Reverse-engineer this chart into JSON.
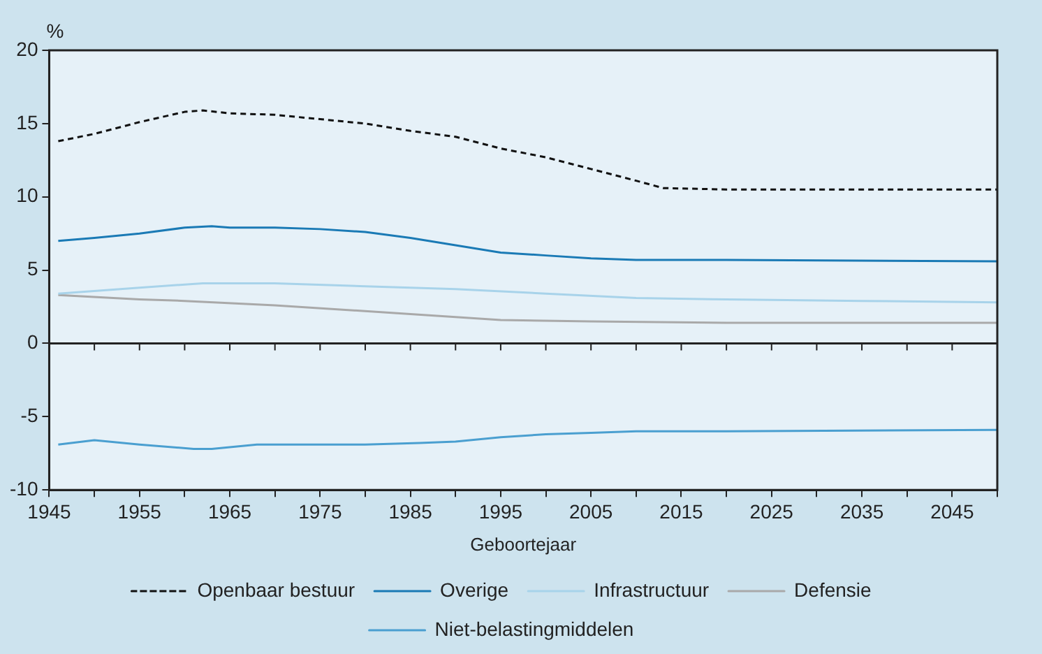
{
  "chart_data": {
    "type": "line",
    "ylabel": "%",
    "xlabel": "Geboortejaar",
    "xlim": [
      1945,
      2050
    ],
    "xticks": [
      1945,
      {
        "value": 1950,
        "label": null
      },
      1955,
      {
        "value": 1960,
        "label": null
      },
      1965,
      {
        "value": 1970,
        "label": null
      },
      1975,
      {
        "value": 1980,
        "label": null
      },
      1985,
      {
        "value": 1990,
        "label": null
      },
      1995,
      {
        "value": 2000,
        "label": null
      },
      2005,
      {
        "value": 2010,
        "label": null
      },
      2015,
      {
        "value": 2020,
        "label": null
      },
      2025,
      {
        "value": 2030,
        "label": null
      },
      2035,
      {
        "value": 2040,
        "label": null
      },
      2045,
      {
        "value": 2050,
        "label": null
      }
    ],
    "ylim": [
      -10,
      20
    ],
    "yticks": [
      -10,
      -5,
      0,
      5,
      10,
      15,
      20
    ],
    "grid": false,
    "legend": "bottom",
    "marker": "none",
    "ref_lines": [
      {
        "axis": "y",
        "value": 0,
        "color": "#222222"
      }
    ],
    "series": [
      {
        "name": "Openbaar bestuur",
        "color": "#111111",
        "line_style": "dashed",
        "x": [
          1946,
          1950,
          1955,
          1960,
          1962,
          1965,
          1970,
          1975,
          1980,
          1985,
          1990,
          1995,
          2000,
          2005,
          2010,
          2013,
          2020,
          2030,
          2040,
          2050
        ],
        "values": [
          13.8,
          14.3,
          15.1,
          15.8,
          15.9,
          15.7,
          15.6,
          15.3,
          15.0,
          14.5,
          14.1,
          13.3,
          12.7,
          11.9,
          11.1,
          10.6,
          10.5,
          10.5,
          10.5,
          10.5
        ]
      },
      {
        "name": "Overige",
        "color": "#1a7ab5",
        "line_style": "solid",
        "x": [
          1946,
          1950,
          1955,
          1960,
          1963,
          1965,
          1970,
          1975,
          1980,
          1985,
          1990,
          1995,
          2000,
          2005,
          2010,
          2020,
          2050
        ],
        "values": [
          7.0,
          7.2,
          7.5,
          7.9,
          8.0,
          7.9,
          7.9,
          7.8,
          7.6,
          7.2,
          6.7,
          6.2,
          6.0,
          5.8,
          5.7,
          5.7,
          5.6
        ]
      },
      {
        "name": "Infrastructuur",
        "color": "#a8d3ea",
        "line_style": "solid",
        "x": [
          1946,
          1955,
          1962,
          1970,
          1980,
          1990,
          2000,
          2010,
          2020,
          2035,
          2050
        ],
        "values": [
          3.4,
          3.8,
          4.1,
          4.1,
          3.9,
          3.7,
          3.4,
          3.1,
          3.0,
          2.9,
          2.8
        ]
      },
      {
        "name": "Defensie",
        "color": "#a9a9a9",
        "line_style": "solid",
        "x": [
          1946,
          1955,
          1960,
          1970,
          1980,
          1985,
          1995,
          2005,
          2020,
          2050
        ],
        "values": [
          3.3,
          3.0,
          2.9,
          2.6,
          2.2,
          2.0,
          1.6,
          1.5,
          1.4,
          1.4
        ]
      },
      {
        "name": "Niet-belastingmiddelen",
        "color": "#4a9fd0",
        "line_style": "solid",
        "x": [
          1946,
          1950,
          1955,
          1961,
          1963,
          1968,
          1980,
          1986,
          1990,
          1995,
          2000,
          2005,
          2010,
          2020,
          2050
        ],
        "values": [
          -6.9,
          -6.6,
          -6.9,
          -7.2,
          -7.2,
          -6.9,
          -6.9,
          -6.8,
          -6.7,
          -6.4,
          -6.2,
          -6.1,
          -6.0,
          -6.0,
          -5.9
        ]
      }
    ]
  }
}
